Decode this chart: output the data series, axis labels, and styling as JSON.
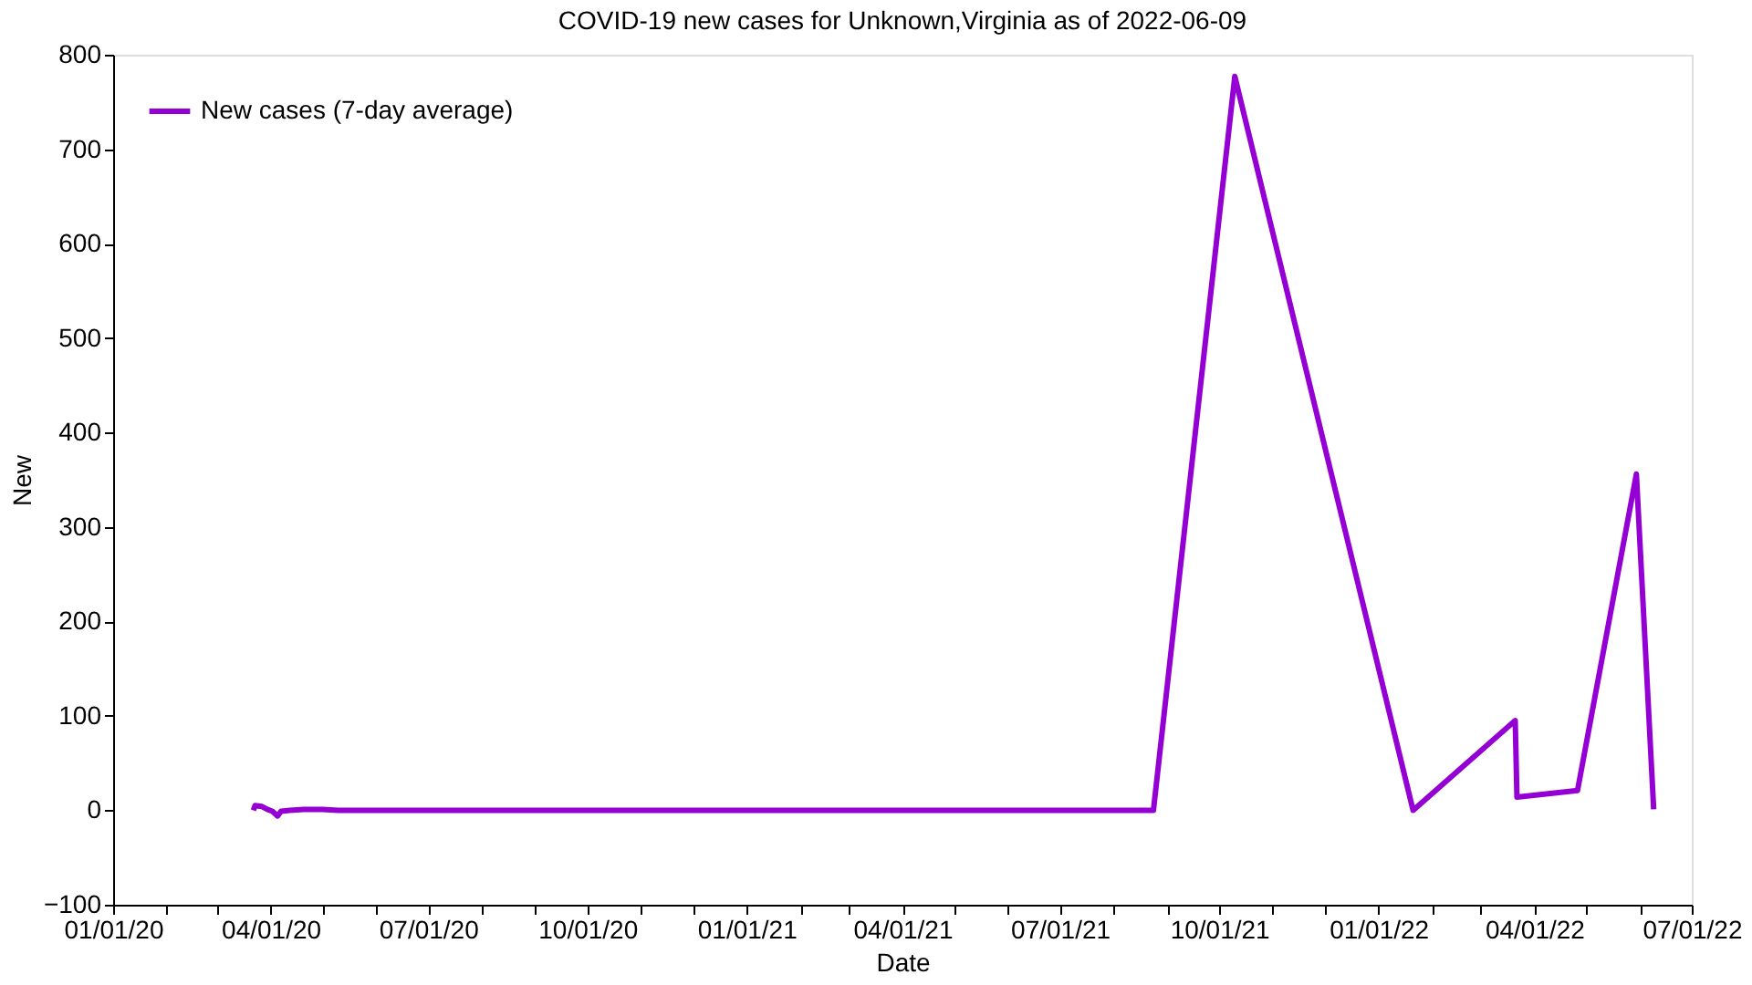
{
  "chart_data": {
    "type": "line",
    "title": "COVID-19 new cases for Unknown,Virginia as of 2022-06-09",
    "xlabel": "Date",
    "ylabel": "New",
    "x": [
      "2020-03-22",
      "2020-03-23",
      "2020-03-27",
      "2020-03-30",
      "2020-04-02",
      "2020-04-05",
      "2020-04-07",
      "2020-04-12",
      "2020-04-20",
      "2020-05-01",
      "2020-05-10",
      "2021-08-24",
      "2021-10-10",
      "2022-01-21",
      "2022-03-21",
      "2022-03-22",
      "2022-04-26",
      "2022-05-30",
      "2022-06-09"
    ],
    "series": [
      {
        "name": "New cases (7-day average)",
        "color": "#9400d3",
        "values": [
          0,
          5,
          4,
          1,
          -1,
          -6,
          -1,
          0,
          1,
          1,
          0,
          0,
          777,
          0,
          95,
          14,
          21,
          356,
          1
        ]
      }
    ],
    "xlim": [
      "2020-01-01",
      "2022-07-01"
    ],
    "xticks": [
      {
        "value": "2020-01-01",
        "label": "01/01/20"
      },
      {
        "value": "2020-02-01",
        "label": null
      },
      {
        "value": "2020-03-01",
        "label": null
      },
      {
        "value": "2020-04-01",
        "label": "04/01/20"
      },
      {
        "value": "2020-05-01",
        "label": null
      },
      {
        "value": "2020-06-01",
        "label": null
      },
      {
        "value": "2020-07-01",
        "label": "07/01/20"
      },
      {
        "value": "2020-08-01",
        "label": null
      },
      {
        "value": "2020-09-01",
        "label": null
      },
      {
        "value": "2020-10-01",
        "label": "10/01/20"
      },
      {
        "value": "2020-11-01",
        "label": null
      },
      {
        "value": "2020-12-01",
        "label": null
      },
      {
        "value": "2021-01-01",
        "label": "01/01/21"
      },
      {
        "value": "2021-02-01",
        "label": null
      },
      {
        "value": "2021-03-01",
        "label": null
      },
      {
        "value": "2021-04-01",
        "label": "04/01/21"
      },
      {
        "value": "2021-05-01",
        "label": null
      },
      {
        "value": "2021-06-01",
        "label": null
      },
      {
        "value": "2021-07-01",
        "label": "07/01/21"
      },
      {
        "value": "2021-08-01",
        "label": null
      },
      {
        "value": "2021-09-01",
        "label": null
      },
      {
        "value": "2021-10-01",
        "label": "10/01/21"
      },
      {
        "value": "2021-11-01",
        "label": null
      },
      {
        "value": "2021-12-01",
        "label": null
      },
      {
        "value": "2022-01-01",
        "label": "01/01/22"
      },
      {
        "value": "2022-02-01",
        "label": null
      },
      {
        "value": "2022-03-01",
        "label": null
      },
      {
        "value": "2022-04-01",
        "label": "04/01/22"
      },
      {
        "value": "2022-05-01",
        "label": null
      },
      {
        "value": "2022-06-01",
        "label": null
      },
      {
        "value": "2022-07-01",
        "label": "07/01/22"
      }
    ],
    "ylim": [
      -100,
      800
    ],
    "yticks": [
      -100,
      0,
      100,
      200,
      300,
      400,
      500,
      600,
      700,
      800
    ],
    "grid": false,
    "legend": "top left",
    "marker": "none",
    "line_style": "solid"
  }
}
